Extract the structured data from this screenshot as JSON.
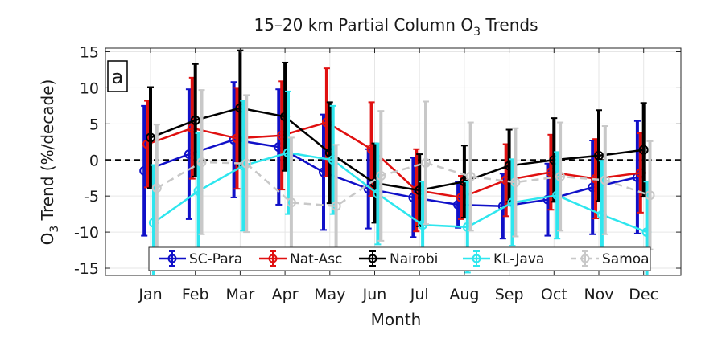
{
  "chart_data": {
    "type": "line",
    "title": "15–20 km Partial Column O",
    "title_sub": "3",
    "title_suffix": " Trends",
    "xlabel": "Month",
    "ylabel_prefix": "O",
    "ylabel_sub": "3",
    "ylabel_suffix": " Trend (%/decade)",
    "panel_label": "a",
    "categories": [
      "Jan",
      "Feb",
      "Mar",
      "Apr",
      "May",
      "Jun",
      "Jul",
      "Aug",
      "Sep",
      "Oct",
      "Nov",
      "Dec"
    ],
    "ylim": [
      -16,
      15.5
    ],
    "yticks": [
      -15,
      -10,
      -5,
      0,
      5,
      10,
      15
    ],
    "grid": true,
    "zero_line": "dashed",
    "legend_position": "bottom",
    "series": [
      {
        "name": "SC-Para",
        "color": "#1010c8",
        "dashed": false,
        "offset": -0.14,
        "values": [
          -1.5,
          0.8,
          2.8,
          1.8,
          -1.7,
          -4.0,
          -5.2,
          -6.2,
          -6.4,
          -5.5,
          -3.8,
          -2.4
        ],
        "err": [
          9.0,
          9.0,
          8.0,
          8.0,
          8.0,
          5.5,
          5.5,
          3.2,
          4.5,
          5.0,
          6.5,
          7.8
        ]
      },
      {
        "name": "Nat-Asc",
        "color": "#e01010",
        "dashed": false,
        "offset": -0.07,
        "values": [
          2.2,
          4.4,
          3.0,
          3.4,
          5.2,
          1.5,
          -4.2,
          -5.2,
          -2.8,
          -1.7,
          -2.6,
          -1.8
        ],
        "err": [
          6.0,
          7.0,
          7.0,
          7.5,
          7.5,
          6.5,
          5.7,
          3.0,
          5.0,
          5.2,
          5.5,
          5.5
        ]
      },
      {
        "name": "Nairobi",
        "color": "#000000",
        "dashed": false,
        "offset": 0.0,
        "values": [
          3.1,
          5.5,
          7.2,
          6.0,
          1.0,
          -3.2,
          -4.2,
          -3.0,
          -0.8,
          0.0,
          0.6,
          1.4
        ],
        "err": [
          7.0,
          7.8,
          8.0,
          7.5,
          7.0,
          5.5,
          5.0,
          5.0,
          5.0,
          5.8,
          6.3,
          6.5
        ]
      },
      {
        "name": "KL-Java",
        "color": "#2ee6ee",
        "dashed": false,
        "offset": 0.07,
        "values": [
          -8.7,
          -4.3,
          -0.8,
          1.0,
          0.0,
          -4.7,
          -9.0,
          -9.3,
          -5.9,
          -4.9,
          -7.6,
          -10.0
        ],
        "err": [
          8.0,
          8.0,
          9.0,
          8.5,
          7.5,
          7.0,
          6.0,
          6.3,
          6.0,
          6.0,
          7.5,
          7.0
        ]
      },
      {
        "name": "Samoa",
        "color": "#c8c8c8",
        "dashed": true,
        "offset": 0.14,
        "values": [
          -3.9,
          -0.3,
          -0.5,
          -5.9,
          -6.4,
          -2.2,
          -0.4,
          -2.3,
          -3.1,
          -2.3,
          -2.8,
          -4.9
        ],
        "err": [
          8.8,
          10.0,
          9.5,
          9.0,
          8.5,
          9.0,
          8.5,
          7.5,
          7.5,
          7.5,
          7.5,
          7.5
        ]
      }
    ]
  }
}
